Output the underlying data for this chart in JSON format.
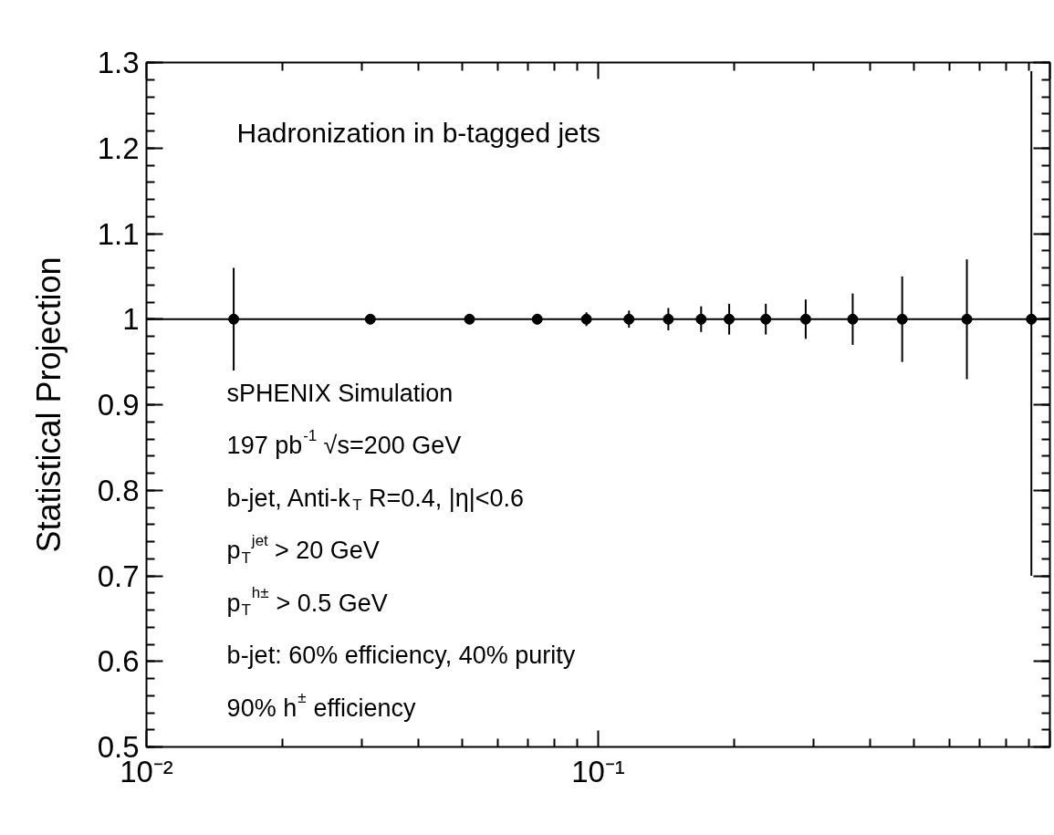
{
  "chart_data": {
    "type": "scatter",
    "title": "Hadronization in b-tagged jets",
    "ylabel": "Statistical Projection",
    "x": [
      0.0156,
      0.0313,
      0.0519,
      0.0733,
      0.0942,
      0.117,
      0.143,
      0.169,
      0.195,
      0.235,
      0.288,
      0.366,
      0.471,
      0.655,
      0.91
    ],
    "values": [
      1,
      1,
      1,
      1,
      1,
      1,
      1,
      1,
      1,
      1,
      1,
      1,
      1,
      1,
      1
    ],
    "errors": [
      0.06,
      0.005,
      0.005,
      0.006,
      0.008,
      0.01,
      0.013,
      0.015,
      0.018,
      0.018,
      0.023,
      0.03,
      0.05,
      0.07,
      [
        0.7,
        1.29
      ]
    ],
    "color": "#000000",
    "marker": "circle",
    "log": "x",
    "grid": false,
    "xlim": [
      0.01,
      1
    ],
    "xticks": [
      {
        "value": 0.01,
        "label": "10⁻²"
      },
      {
        "value": 0.1,
        "label": "10⁻¹"
      },
      {
        "value": 1,
        "label": null
      }
    ],
    "ylim": [
      0.5,
      1.3
    ],
    "yticks": [
      0.5,
      0.6,
      0.7,
      0.8,
      0.9,
      1,
      1.1,
      1.2,
      1.3
    ],
    "ref_lines": [
      {
        "axis": "y",
        "value": 1,
        "color": "#000000"
      }
    ],
    "annotations": [
      "sPHENIX Simulation",
      "197 pb$^{-1}$ √s=200 GeV",
      "b-jet, Anti-k$_{T}$ R=0.4, |η|<0.6",
      "p$_{T}$$^{jet}$ > 20 GeV",
      "p$_{T}$$^{h±}$ > 0.5 GeV",
      "b-jet: 60% efficiency, 40% purity",
      "90% h$^{±}$ efficiency"
    ]
  }
}
